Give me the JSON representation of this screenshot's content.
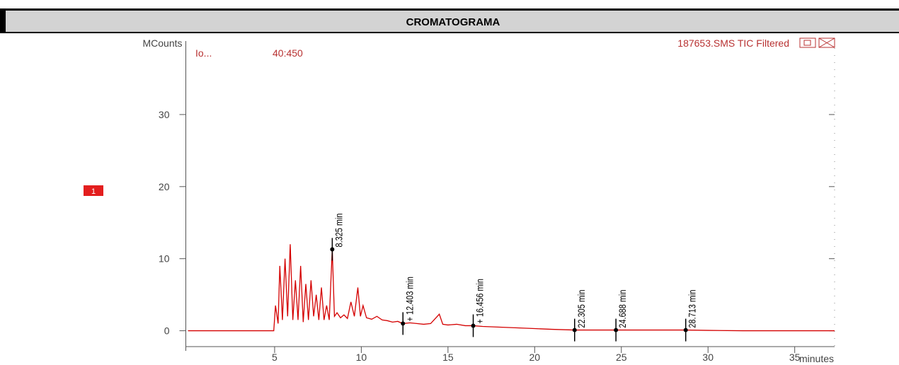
{
  "header": {
    "title": "CROMATOGRAMA"
  },
  "chart_data": {
    "type": "line",
    "y_label": "MCounts",
    "x_label": "minutes",
    "trace_name": "187653.SMS TIC Filtered",
    "ion_label": "Io...",
    "ion_range": "40:450",
    "trace_marker": "1",
    "color": "#d40000",
    "x": [
      0,
      4.95,
      5.05,
      5.2,
      5.3,
      5.45,
      5.6,
      5.75,
      5.9,
      6.05,
      6.2,
      6.35,
      6.5,
      6.65,
      6.8,
      6.95,
      7.1,
      7.25,
      7.4,
      7.55,
      7.7,
      7.85,
      8.0,
      8.15,
      8.325,
      8.45,
      8.6,
      8.8,
      9.0,
      9.2,
      9.4,
      9.6,
      9.8,
      9.95,
      10.1,
      10.3,
      10.6,
      10.9,
      11.2,
      11.5,
      11.8,
      12.1,
      12.403,
      12.8,
      13.2,
      13.6,
      14.0,
      14.5,
      14.7,
      15.0,
      15.5,
      16.0,
      16.456,
      17.0,
      18,
      19,
      20,
      21,
      22.305,
      23,
      24.688,
      26,
      27,
      28.713,
      30,
      32,
      34,
      36,
      37.3
    ],
    "values": [
      0,
      0,
      3.5,
      1,
      9,
      1.5,
      10,
      2,
      12,
      1.5,
      7,
      1.5,
      9,
      1.2,
      6.5,
      1.5,
      7,
      2,
      5,
      1.5,
      6,
      1.5,
      3.5,
      1.5,
      11.3,
      2,
      2.5,
      1.8,
      2.2,
      1.7,
      4,
      2,
      6,
      2,
      3.5,
      1.8,
      1.6,
      2,
      1.5,
      1.4,
      1.2,
      1.3,
      1,
      1.1,
      1.0,
      0.9,
      1.0,
      2.3,
      0.9,
      0.8,
      0.9,
      0.7,
      0.7,
      0.6,
      0.5,
      0.4,
      0.3,
      0.2,
      0.1,
      0.1,
      0.1,
      0.1,
      0.1,
      0.1,
      0.05,
      0,
      0,
      0,
      0
    ],
    "peaks": {
      "labels": [
        "8.325 min",
        "+ 12.403 min",
        "+ 16.456 min",
        "22.305 min",
        "24.688 min",
        "28.713 min"
      ],
      "x": [
        8.325,
        12.403,
        16.456,
        22.305,
        24.688,
        28.713
      ],
      "y": [
        11.3,
        1,
        0.7,
        0.1,
        0.1,
        0.1
      ]
    },
    "xlim": [
      0,
      37.3
    ],
    "ylim": [
      -2.2,
      40.2
    ],
    "xticks": [
      5,
      10,
      15,
      20,
      25,
      30,
      35
    ],
    "yticks": [
      0,
      10,
      20,
      30
    ]
  }
}
